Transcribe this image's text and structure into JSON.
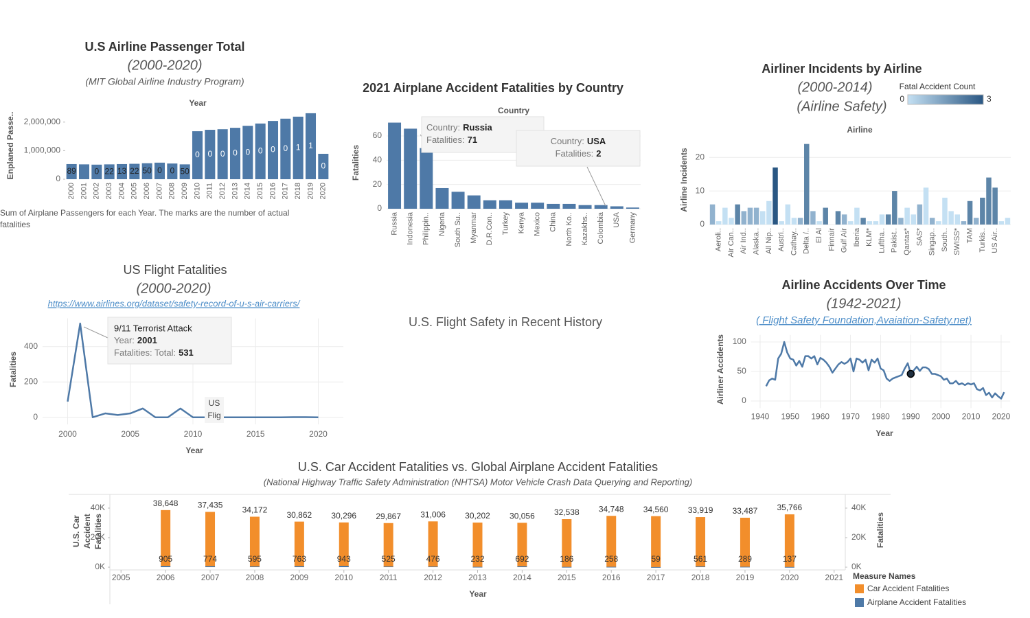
{
  "heading": "U.S. Flight Safety in Recent History",
  "chart_data": [
    {
      "type": "bar",
      "title": "U.S Airline Passenger Total",
      "subtitle": "(2000-2020)",
      "source": "(MIT Global Airline Industry Program)",
      "x_label": "Year",
      "y_label": "Enplaned Passe..",
      "caption": "Sum of Airplane Passengers for each Year.  The marks are the number of actual fatalities",
      "categories": [
        2000,
        2001,
        2002,
        2003,
        2004,
        2005,
        2006,
        2007,
        2008,
        2009,
        2010,
        2011,
        2012,
        2013,
        2014,
        2015,
        2016,
        2017,
        2018,
        2019,
        2020
      ],
      "values": [
        530000,
        520000,
        510000,
        520000,
        530000,
        540000,
        560000,
        580000,
        550000,
        520000,
        1680000,
        1730000,
        1750000,
        1800000,
        1870000,
        1950000,
        2040000,
        2120000,
        2190000,
        2310000,
        890000
      ],
      "fatalities": [
        89,
        null,
        0,
        22,
        13,
        22,
        50,
        0,
        0,
        50,
        0,
        0,
        0,
        0,
        0,
        0,
        0,
        0,
        1,
        1,
        0
      ],
      "color": "#4e79a7",
      "ylim": [
        0,
        2500000
      ],
      "yticks": [
        0,
        {
          "value": 1000000,
          "label": "1,000,000"
        },
        {
          "value": 2000000,
          "label": "2,000,000"
        }
      ],
      "grid": false
    },
    {
      "type": "bar",
      "title": "2021 Airplane Accident Fatalities by Country",
      "x_label": "Country",
      "y_label": "Fatalities",
      "categories": [
        "Russia",
        "Indonesia",
        "Philippin..",
        "Nigeria",
        "South Su..",
        "Myanmar",
        "D.R.Con..",
        "Turkey",
        "Kenya",
        "Mexico",
        "China",
        "North Ko..",
        "Kazakhs..",
        "Colombia",
        "USA",
        "Germany"
      ],
      "values": [
        71,
        66,
        50,
        17,
        14,
        11,
        7,
        7,
        5,
        5,
        4,
        4,
        3,
        3,
        2,
        1
      ],
      "color": "#4e79a7",
      "ylim": [
        0,
        75
      ],
      "yticks": [
        0,
        20,
        40,
        60
      ],
      "grid": true,
      "tooltips": [
        {
          "lines": [
            {
              "key": "Country:",
              "value": "Russia"
            },
            {
              "key": "Fatalities:",
              "value": 71
            }
          ]
        },
        {
          "lines": [
            {
              "key": "Country:",
              "value": "USA"
            },
            {
              "key": "Fatalities:",
              "value": 2
            }
          ]
        }
      ]
    },
    {
      "type": "bar",
      "title": "Airliner Incidents by Airline",
      "subtitle": "(2000-2014)",
      "source": "(Airline Safety)",
      "x_label": "Airline",
      "y_label": "Airline Incidents",
      "legend_title": "Fatal Accident Count",
      "categories": [
        null,
        "Aeroli..",
        null,
        "Air Can..",
        null,
        "Air Ind..",
        null,
        "Alaska..",
        null,
        "All Nip..",
        null,
        "Austri..",
        null,
        "Cathay..",
        null,
        "Delta /..",
        null,
        "El Al",
        null,
        "Finnair",
        null,
        "Gulf Air",
        null,
        "Iberia",
        null,
        "KLM*",
        null,
        "Luftha..",
        null,
        "Pakist..",
        null,
        "Qantas*",
        null,
        "SAS*",
        null,
        "Singap..",
        null,
        "South..",
        null,
        "SWISS*",
        null,
        "TAM",
        null,
        "Turkis..",
        null,
        "US Air..",
        null,
        null
      ],
      "values": [
        6,
        1,
        5,
        2,
        6,
        4,
        5,
        5,
        4,
        7,
        17,
        1,
        6,
        2,
        2,
        24,
        4,
        1,
        5,
        0,
        4,
        3,
        1,
        5,
        2,
        1,
        1,
        3,
        3,
        10,
        2,
        5,
        3,
        6,
        11,
        2,
        1,
        8,
        4,
        3,
        1,
        7,
        2,
        8,
        14,
        11,
        1,
        2
      ],
      "color_values": [
        1,
        0,
        0,
        0,
        2,
        1,
        1,
        1,
        0,
        0,
        3,
        0,
        0,
        0,
        1,
        2,
        1,
        0,
        2,
        0,
        2,
        1,
        0,
        0,
        2,
        0,
        0,
        0,
        2,
        2,
        1,
        0,
        0,
        1,
        0,
        1,
        0,
        0,
        0,
        0,
        1,
        2,
        1,
        2,
        2,
        2,
        0,
        0
      ],
      "color_range": [
        0,
        3
      ],
      "colors": [
        "#c4e0f3",
        "#2a5783"
      ],
      "ylim": [
        0,
        27
      ],
      "yticks": [
        0,
        10,
        20
      ],
      "grid": true
    },
    {
      "type": "line",
      "title": "US Flight Fatalities",
      "subtitle": "(2000-2020)",
      "source": "https://www.airlines.org/dataset/safety-record-of-u-s-air-carriers/",
      "x_label": "Year",
      "y_label": "Fatalities",
      "x": [
        2000,
        2001,
        2002,
        2003,
        2004,
        2005,
        2006,
        2007,
        2008,
        2009,
        2010,
        2011,
        2012,
        2013,
        2014,
        2015,
        2016,
        2017,
        2018,
        2019,
        2020
      ],
      "values": [
        89,
        531,
        0,
        22,
        13,
        22,
        50,
        0,
        0,
        50,
        0,
        0,
        0,
        0,
        0,
        0,
        0,
        0,
        1,
        1,
        0
      ],
      "color": "#4e79a7",
      "xlim": [
        1998,
        2022
      ],
      "xticks": [
        2000,
        2005,
        2010,
        2015,
        2020
      ],
      "ylim": [
        -40,
        560
      ],
      "yticks": [
        0,
        200,
        400
      ],
      "grid": true,
      "tooltips": [
        {
          "title": "9/11 Terrorist Attack",
          "lines": [
            {
              "key": "Year:",
              "value": 2001
            },
            {
              "key": "Fatalities: Total:",
              "value": 531
            }
          ]
        }
      ],
      "annotation": [
        "US",
        "Flig"
      ]
    },
    {
      "type": "line",
      "title": "Airline Accidents Over Time",
      "subtitle": "(1942-2021)",
      "source": "( Flight Safety Foundation,Avaiation-Safety.net)",
      "x_label": "Year",
      "y_label": "Airliner Accidents",
      "x": [
        1942,
        1943,
        1944,
        1945,
        1946,
        1947,
        1948,
        1949,
        1950,
        1951,
        1952,
        1953,
        1954,
        1955,
        1956,
        1957,
        1958,
        1959,
        1960,
        1961,
        1962,
        1963,
        1964,
        1965,
        1966,
        1967,
        1968,
        1969,
        1970,
        1971,
        1972,
        1973,
        1974,
        1975,
        1976,
        1977,
        1978,
        1979,
        1980,
        1981,
        1982,
        1983,
        1984,
        1985,
        1986,
        1987,
        1988,
        1989,
        1990,
        1991,
        1992,
        1993,
        1994,
        1995,
        1996,
        1997,
        1998,
        1999,
        2000,
        2001,
        2002,
        2003,
        2004,
        2005,
        2006,
        2007,
        2008,
        2009,
        2010,
        2011,
        2012,
        2013,
        2014,
        2015,
        2016,
        2017,
        2018,
        2019,
        2020,
        2021
      ],
      "values": [
        25,
        35,
        38,
        36,
        72,
        80,
        100,
        82,
        72,
        70,
        60,
        68,
        58,
        76,
        76,
        72,
        76,
        62,
        73,
        70,
        65,
        58,
        48,
        55,
        62,
        66,
        63,
        66,
        72,
        50,
        72,
        70,
        65,
        70,
        52,
        70,
        65,
        72,
        55,
        52,
        38,
        34,
        38,
        40,
        42,
        44,
        55,
        64,
        46,
        52,
        58,
        51,
        57,
        57,
        54,
        46,
        46,
        44,
        42,
        36,
        38,
        30,
        30,
        34,
        28,
        30,
        27,
        30,
        28,
        30,
        20,
        18,
        22,
        10,
        14,
        6,
        13,
        8,
        4,
        15
      ],
      "highlight_x": 1990,
      "color": "#4e79a7",
      "xlim": [
        1937,
        2023
      ],
      "xticks": [
        1940,
        1950,
        1960,
        1970,
        1980,
        1990,
        2000,
        2010,
        2020
      ],
      "ylim": [
        -12,
        112
      ],
      "yticks": [
        0,
        50,
        100
      ],
      "grid": true
    },
    {
      "type": "bar",
      "title": "U.S. Car Accident Fatalities vs. Global Airplane Accident Fatalities",
      "subtitle": "(National Highway Traffic Safety Administration (NHTSA) Motor Vehicle Crash Data Querying and Reporting)",
      "x_label": "Year",
      "y_label": "U.S. Car Accident Fatalities",
      "y2_label": "Fatalities",
      "legend_title": "Measure Names",
      "x": [
        2006,
        2007,
        2008,
        2009,
        2010,
        2011,
        2012,
        2013,
        2014,
        2015,
        2016,
        2017,
        2018,
        2019,
        2020
      ],
      "series": [
        {
          "name": "Car Accident Fatalities",
          "color": "#f28e2b",
          "values": [
            38648,
            37435,
            34172,
            30862,
            30296,
            29867,
            31006,
            30202,
            30056,
            32538,
            34748,
            34560,
            33919,
            33487,
            35766
          ],
          "value_labels": [
            "38,648",
            "37,435",
            "34,172",
            "30,862",
            "30,296",
            "29,867",
            "31,006",
            "30,202",
            "30,056",
            "32,538",
            "34,748",
            "34,560",
            "33,919",
            "33,487",
            "35,766"
          ]
        },
        {
          "name": "Airplane Accident Fatalities",
          "color": "#4e79a7",
          "axis": "y2",
          "values": [
            905,
            774,
            595,
            763,
            943,
            525,
            476,
            232,
            692,
            186,
            258,
            59,
            561,
            289,
            137
          ]
        }
      ],
      "xlim": [
        2004.75,
        2021.25
      ],
      "xticks": [
        2005,
        2006,
        2007,
        2008,
        2009,
        2010,
        2011,
        2012,
        2013,
        2014,
        2015,
        2016,
        2017,
        2018,
        2019,
        2020,
        2021
      ],
      "ylim": [
        0,
        49000
      ],
      "yticks": [
        {
          "value": 0,
          "label": "0K"
        },
        {
          "value": 20000,
          "label": "20K"
        },
        {
          "value": 40000,
          "label": "40K"
        }
      ],
      "y2lim": [
        0,
        49000
      ],
      "y2ticks": [
        {
          "value": 0,
          "label": "0K"
        },
        {
          "value": 20000,
          "label": "20K"
        },
        {
          "value": 40000,
          "label": "40K"
        }
      ],
      "grid": false
    }
  ]
}
